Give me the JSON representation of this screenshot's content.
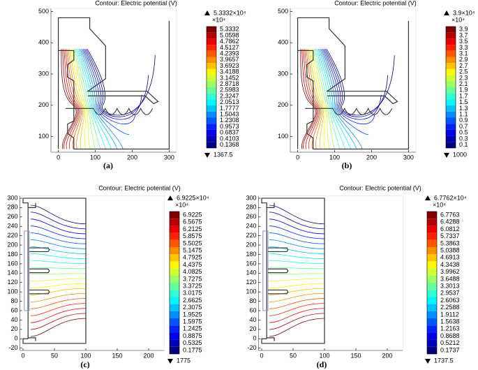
{
  "chart_data": [
    {
      "type": "contour",
      "title": "Contour: Electric potential (V)",
      "caption": "(a)",
      "xlim": [
        -20,
        320
      ],
      "ylim": [
        50,
        510
      ],
      "xticks": [
        0,
        100,
        200,
        300
      ],
      "yticks": [
        100,
        200,
        300,
        400,
        500
      ],
      "colorbar_max": {
        "value": 53332,
        "label": "5.3332×10⁴"
      },
      "colorbar_unit": "×10⁴",
      "colorbar_min": 1367.5,
      "levels": [
        5.3332,
        5.0598,
        4.7862,
        4.5127,
        4.2393,
        3.9657,
        3.6923,
        3.4188,
        3.1452,
        2.8718,
        2.5983,
        2.3247,
        2.0513,
        1.7777,
        1.5043,
        1.2308,
        0.9573,
        0.6837,
        0.4103,
        0.1368
      ]
    },
    {
      "type": "contour",
      "title": "Contour: Electric potential (V)",
      "caption": "(b)",
      "xlim": [
        -20,
        320
      ],
      "ylim": [
        50,
        510
      ],
      "xticks": [
        0,
        100,
        200,
        300
      ],
      "yticks": [
        100,
        200,
        300,
        400,
        500
      ],
      "colorbar_max": {
        "value": 39000,
        "label": "3.9×10⁴"
      },
      "colorbar_unit": "×10⁴",
      "colorbar_min": 1000,
      "levels": [
        3.9,
        3.7,
        3.5,
        3.3,
        3.1,
        2.9,
        2.7,
        2.5,
        2.3,
        2.1,
        1.9,
        1.7,
        1.5,
        1.3,
        1.1,
        0.9,
        0.7,
        0.5,
        0.3,
        0.1
      ]
    },
    {
      "type": "contour",
      "title": "Contour: Electric potential (V)",
      "caption": "(c)",
      "xlim": [
        -5,
        225
      ],
      "ylim": [
        -25,
        305
      ],
      "xticks": [
        0,
        50,
        100,
        150,
        200
      ],
      "yticks": [
        -20,
        0,
        20,
        40,
        60,
        80,
        100,
        120,
        140,
        160,
        180,
        200,
        220,
        240,
        260,
        280,
        300
      ],
      "colorbar_max": {
        "value": 69225,
        "label": "6.9225×10⁴"
      },
      "colorbar_unit": "×10⁴",
      "colorbar_min": 1775,
      "levels": [
        6.9225,
        6.5675,
        6.2125,
        5.8575,
        5.5025,
        5.1475,
        4.7925,
        4.4375,
        4.0825,
        3.7275,
        3.3725,
        3.0175,
        2.6625,
        2.3075,
        1.9525,
        1.5975,
        1.2425,
        0.8875,
        0.5325,
        0.1775
      ]
    },
    {
      "type": "contour",
      "title": "Contour: Electric potential (V)",
      "caption": "(d)",
      "xlim": [
        -5,
        225
      ],
      "ylim": [
        -25,
        305
      ],
      "xticks": [
        0,
        50,
        100,
        150,
        200
      ],
      "yticks": [
        -20,
        0,
        20,
        40,
        60,
        80,
        100,
        120,
        140,
        160,
        180,
        200,
        220,
        240,
        260,
        280,
        300
      ],
      "colorbar_max": {
        "value": 67762,
        "label": "6.7762×10⁴"
      },
      "colorbar_unit": "×10⁴",
      "colorbar_min": 1737.5,
      "levels": [
        6.7763,
        6.4288,
        6.0812,
        5.7337,
        5.3863,
        5.0388,
        4.6913,
        4.3438,
        3.9962,
        3.6488,
        3.3013,
        2.9537,
        2.6063,
        2.2588,
        1.9112,
        1.5638,
        1.2163,
        0.8688,
        0.5212,
        0.1737
      ]
    }
  ]
}
